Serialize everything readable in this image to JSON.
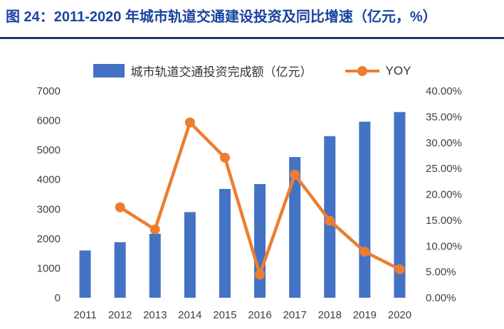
{
  "figure": {
    "title": "图 24：2011-2020 年城市轨道交通建设投资及同比增速（亿元，%）"
  },
  "legend": {
    "bars_label": "城市轨道交通投资完成额（亿元）",
    "line_label": "YOY"
  },
  "colors": {
    "title": "#1A44A0",
    "divider": "#1F3864",
    "bar": "#4472C4",
    "line": "#ED7D31",
    "axis_text": "#404040"
  },
  "chart_data": {
    "type": "bar",
    "subtype": "bar-with-line-overlay",
    "title": "2011-2020 年城市轨道交通建设投资及同比增速",
    "categories": [
      "2011",
      "2012",
      "2013",
      "2014",
      "2015",
      "2016",
      "2017",
      "2018",
      "2019",
      "2020"
    ],
    "series": [
      {
        "name": "城市轨道交通投资完成额（亿元）",
        "type": "bar",
        "axis": "left",
        "values": [
          1600,
          1880,
          2165,
          2899,
          3683,
          3847,
          4762,
          5470,
          5959,
          6286
        ]
      },
      {
        "name": "YOY",
        "type": "line",
        "axis": "right",
        "values": [
          null,
          17.5,
          13.2,
          33.9,
          27.1,
          4.5,
          23.8,
          14.9,
          8.9,
          5.5
        ]
      }
    ],
    "left_axis": {
      "min": 0,
      "max": 7000,
      "step": 1000,
      "tick_labels": [
        "0",
        "1000",
        "2000",
        "3000",
        "4000",
        "5000",
        "6000",
        "7000"
      ]
    },
    "right_axis": {
      "min": 0,
      "max": 40,
      "step": 5,
      "format": "percent2",
      "tick_labels": [
        "0.00%",
        "5.00%",
        "10.00%",
        "15.00%",
        "20.00%",
        "25.00%",
        "30.00%",
        "35.00%",
        "40.00%"
      ]
    },
    "grid": false,
    "legend_position": "top"
  }
}
